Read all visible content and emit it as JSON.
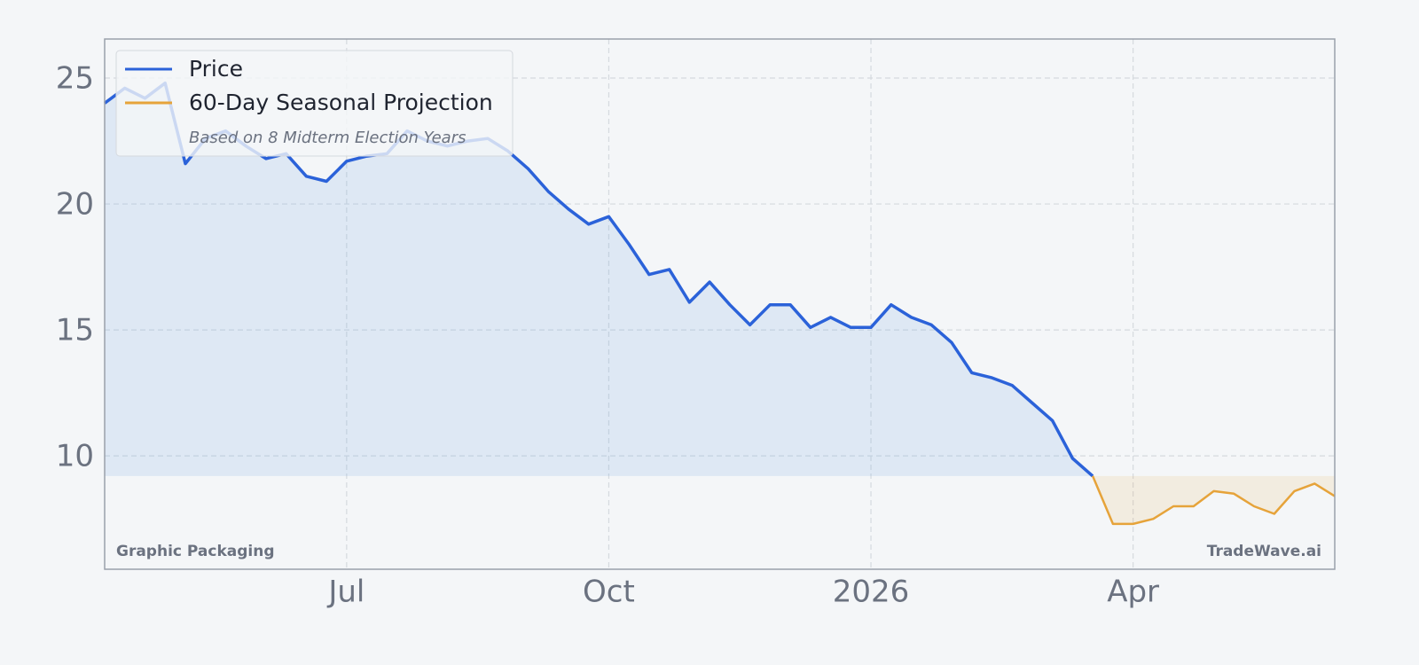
{
  "chart_data": {
    "type": "line",
    "categories": [
      null,
      null,
      null,
      null,
      null,
      null,
      null,
      null,
      null,
      null,
      null,
      null,
      "Jul",
      null,
      null,
      null,
      null,
      null,
      null,
      null,
      null,
      null,
      null,
      null,
      null,
      "Oct",
      null,
      null,
      null,
      null,
      null,
      null,
      null,
      null,
      null,
      null,
      null,
      null,
      "2026",
      null,
      null,
      null,
      null,
      null,
      null,
      null,
      null,
      null,
      null,
      null,
      null,
      "Apr",
      null,
      null,
      null,
      null,
      null,
      null,
      null,
      null,
      null,
      null
    ],
    "series": [
      {
        "name": "Price",
        "color": "#2b62d9",
        "values": [
          24.0,
          24.6,
          24.2,
          24.8,
          21.6,
          22.6,
          22.9,
          22.3,
          21.8,
          22.0,
          21.1,
          20.9,
          21.7,
          21.9,
          22.0,
          22.9,
          22.5,
          22.3,
          22.5,
          22.6,
          22.1,
          21.4,
          20.5,
          19.8,
          19.2,
          19.5,
          18.4,
          17.2,
          17.4,
          16.1,
          16.9,
          16.0,
          15.2,
          16.0,
          16.0,
          15.1,
          15.5,
          15.1,
          15.1,
          16.0,
          15.5,
          15.2,
          14.5,
          13.3,
          13.1,
          12.8,
          12.1,
          11.4,
          9.9,
          9.2,
          null,
          null,
          null,
          null,
          null,
          null,
          null,
          null,
          null,
          null,
          null,
          null
        ]
      },
      {
        "name": "60-Day Seasonal Projection",
        "color": "#e6a33a",
        "values": [
          null,
          null,
          null,
          null,
          null,
          null,
          null,
          null,
          null,
          null,
          null,
          null,
          null,
          null,
          null,
          null,
          null,
          null,
          null,
          null,
          null,
          null,
          null,
          null,
          null,
          null,
          null,
          null,
          null,
          null,
          null,
          null,
          null,
          null,
          null,
          null,
          null,
          null,
          null,
          null,
          null,
          null,
          null,
          null,
          null,
          null,
          null,
          null,
          null,
          9.2,
          7.3,
          7.3,
          7.5,
          8.0,
          8.0,
          8.6,
          8.5,
          8.0,
          7.7,
          8.6,
          8.9,
          8.4
        ]
      }
    ],
    "legend_note": "Based on 8 Midterm Election Years",
    "annotations": [
      "Graphic Packaging",
      "TradeWave.ai"
    ],
    "ylim": [
      5.5,
      26.55
    ],
    "yticks": [
      10,
      15,
      20,
      25
    ],
    "grid": true,
    "legend": "upper left"
  }
}
